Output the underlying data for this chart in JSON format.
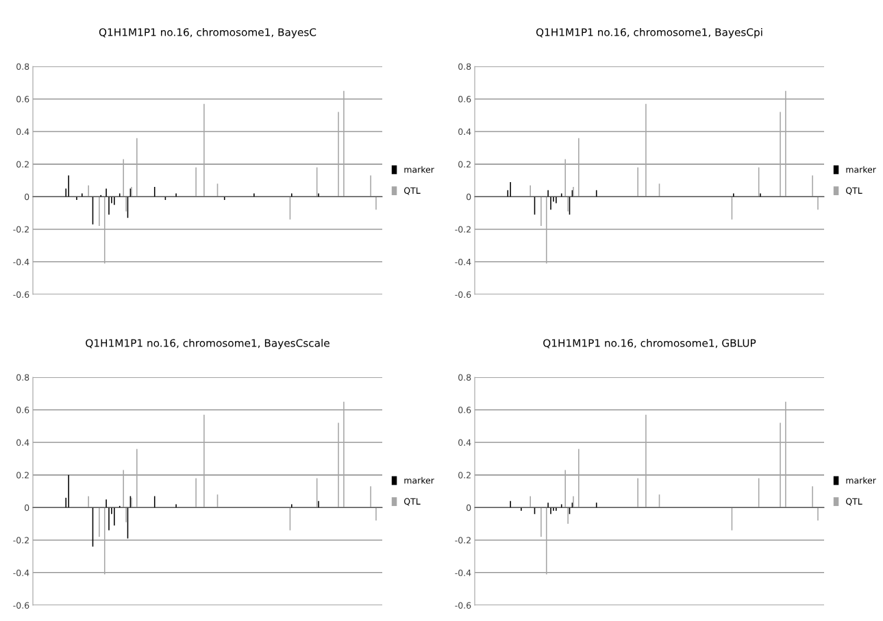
{
  "chart_data": [
    {
      "type": "bar",
      "title": "Q1H1M1P1 no.16, chromosome1, BayesC",
      "categories": [
        null,
        null,
        null,
        null,
        null,
        null,
        null,
        null,
        null,
        null,
        null,
        null,
        null,
        null,
        null,
        null,
        null,
        null,
        null,
        null,
        null,
        null,
        null,
        null,
        null,
        null,
        null,
        null,
        null,
        null,
        null,
        null,
        null,
        null,
        null,
        null,
        null,
        null,
        null,
        null,
        null,
        null,
        null,
        null,
        null,
        null,
        null,
        null,
        null,
        null,
        null,
        null,
        null,
        null,
        null,
        null,
        null,
        null,
        null,
        null,
        null,
        null,
        null,
        null,
        null,
        null,
        null,
        null,
        null,
        null,
        null,
        null,
        null,
        null,
        null,
        null,
        null,
        null,
        null,
        null,
        null,
        null,
        null,
        null,
        null,
        null,
        null,
        null,
        null,
        null,
        null,
        null,
        null,
        null,
        null,
        null,
        null,
        null,
        null,
        null,
        null,
        null,
        null,
        null,
        null,
        null,
        null,
        null,
        null,
        null,
        null,
        null,
        null,
        null,
        null,
        null,
        null,
        null,
        null,
        null,
        null,
        null,
        null,
        null,
        null,
        null,
        null,
        null,
        null,
        null
      ],
      "ylim": [
        -0.6,
        0.8
      ],
      "yticks": [
        -0.6,
        -0.4,
        -0.2,
        0,
        0.2,
        0.4,
        0.6,
        0.8
      ],
      "grid": "y",
      "legend": "right",
      "tick_labels": "y",
      "series": [
        {
          "name": "marker",
          "color": "#000000",
          "values": [
            0,
            0,
            0,
            0,
            0,
            0,
            0,
            0,
            0,
            0,
            0,
            0,
            0.05,
            0.13,
            0,
            0,
            -0.02,
            0,
            0.02,
            0,
            0,
            0,
            -0.17,
            0,
            0,
            0.01,
            0,
            0.05,
            -0.11,
            -0.04,
            -0.05,
            0,
            0.02,
            0,
            0,
            -0.13,
            0.05,
            0,
            0,
            0,
            0,
            0,
            0,
            0,
            0,
            0.06,
            0,
            0,
            0,
            -0.02,
            0,
            0,
            0,
            0.02,
            0,
            0,
            0,
            0,
            0,
            0,
            0,
            0,
            0,
            0,
            0,
            0,
            0,
            0,
            0,
            0,
            0,
            -0.02,
            0,
            0,
            0,
            0,
            0,
            0,
            0,
            0,
            0,
            0,
            0.02,
            0,
            0,
            0,
            0,
            0,
            0,
            0,
            0,
            0,
            0,
            0,
            0,
            0,
            0.02,
            0,
            0,
            0,
            0,
            0,
            0,
            0,
            0,
            0,
            0.02,
            0,
            0,
            0,
            0,
            0,
            0,
            0,
            0,
            0,
            0,
            0,
            0,
            0,
            0,
            0,
            0,
            0,
            0,
            0,
            0,
            0,
            0,
            0
          ]
        },
        {
          "name": "QTL",
          "color": "#a6a6a6",
          "values": [
            0,
            0,
            0,
            0,
            0,
            0,
            0,
            0,
            0,
            0,
            0,
            0,
            0,
            0,
            0,
            0,
            0,
            0,
            0,
            0,
            0.07,
            0,
            0,
            0,
            -0.18,
            0,
            -0.41,
            0,
            0,
            0,
            0,
            0,
            0,
            0.23,
            -0.09,
            0,
            0.06,
            0,
            0.36,
            0,
            0,
            0,
            0,
            0,
            0,
            0,
            0,
            0,
            0,
            0,
            0,
            0,
            0,
            0,
            0,
            0,
            0,
            0,
            0,
            0,
            0.18,
            0,
            0,
            0.57,
            0,
            0,
            0,
            0,
            0.08,
            0,
            0,
            0,
            0,
            0,
            0,
            0,
            0,
            0,
            0,
            0,
            0,
            0,
            0,
            0,
            0,
            0,
            0,
            0,
            0,
            0,
            0,
            0,
            0,
            0,
            0,
            -0.14,
            0,
            0,
            0,
            0,
            0,
            0,
            0,
            0,
            0,
            0.18,
            0,
            0,
            0,
            0,
            0,
            0,
            0,
            0.52,
            0,
            0.65,
            0,
            0,
            0,
            0,
            0,
            0,
            0,
            0,
            0,
            0.13,
            0,
            -0.08,
            0,
            0
          ]
        }
      ]
    },
    {
      "type": "bar",
      "title": "Q1H1M1P1 no.16, chromosome1, BayesCpi",
      "categories": [
        null,
        null,
        null,
        null,
        null,
        null,
        null,
        null,
        null,
        null,
        null,
        null,
        null,
        null,
        null,
        null,
        null,
        null,
        null,
        null,
        null,
        null,
        null,
        null,
        null,
        null,
        null,
        null,
        null,
        null,
        null,
        null,
        null,
        null,
        null,
        null,
        null,
        null,
        null,
        null,
        null,
        null,
        null,
        null,
        null,
        null,
        null,
        null,
        null,
        null,
        null,
        null,
        null,
        null,
        null,
        null,
        null,
        null,
        null,
        null,
        null,
        null,
        null,
        null,
        null,
        null,
        null,
        null,
        null,
        null,
        null,
        null,
        null,
        null,
        null,
        null,
        null,
        null,
        null,
        null,
        null,
        null,
        null,
        null,
        null,
        null,
        null,
        null,
        null,
        null,
        null,
        null,
        null,
        null,
        null,
        null,
        null,
        null,
        null,
        null,
        null,
        null,
        null,
        null,
        null,
        null,
        null,
        null,
        null,
        null,
        null,
        null,
        null,
        null,
        null,
        null,
        null,
        null,
        null,
        null,
        null,
        null,
        null,
        null,
        null,
        null,
        null,
        null,
        null,
        null
      ],
      "ylim": [
        -0.6,
        0.8
      ],
      "yticks": [
        -0.6,
        -0.4,
        -0.2,
        0,
        0.2,
        0.4,
        0.6,
        0.8
      ],
      "grid": "y",
      "legend": "right",
      "tick_labels": "y",
      "series": [
        {
          "name": "marker",
          "color": "#000000",
          "values": [
            0,
            0,
            0,
            0,
            0,
            0,
            0,
            0,
            0,
            0,
            0,
            0,
            0.04,
            0.09,
            0,
            0,
            0,
            0,
            0,
            0,
            0,
            0,
            -0.11,
            0,
            0,
            0,
            0,
            0.04,
            -0.08,
            -0.03,
            -0.04,
            0,
            0.02,
            0,
            0,
            -0.11,
            0.04,
            0,
            0,
            0,
            0,
            0,
            0,
            0,
            0,
            0.04,
            0,
            0,
            0,
            0,
            0,
            0,
            0,
            0,
            0,
            0,
            0,
            0,
            0,
            0,
            0,
            0,
            0,
            0,
            0,
            0,
            0,
            0,
            0,
            0,
            0,
            0,
            0,
            0,
            0,
            0,
            0,
            0,
            0,
            0,
            0,
            0,
            0,
            0,
            0,
            0,
            0,
            0,
            0,
            0,
            0,
            0,
            0,
            0,
            0,
            0,
            0.02,
            0,
            0,
            0,
            0,
            0,
            0,
            0,
            0,
            0,
            0.02,
            0,
            0,
            0,
            0,
            0,
            0,
            0,
            0,
            0,
            0,
            0,
            0,
            0,
            0,
            0,
            0,
            0,
            0,
            0,
            0,
            0,
            0,
            0
          ]
        },
        {
          "name": "QTL",
          "color": "#a6a6a6",
          "values": [
            0,
            0,
            0,
            0,
            0,
            0,
            0,
            0,
            0,
            0,
            0,
            0,
            0,
            0,
            0,
            0,
            0,
            0,
            0,
            0,
            0.07,
            0,
            0,
            0,
            -0.18,
            0,
            -0.41,
            0,
            0,
            0,
            0,
            0,
            0,
            0.23,
            -0.09,
            0,
            0.06,
            0,
            0.36,
            0,
            0,
            0,
            0,
            0,
            0,
            0,
            0,
            0,
            0,
            0,
            0,
            0,
            0,
            0,
            0,
            0,
            0,
            0,
            0,
            0,
            0.18,
            0,
            0,
            0.57,
            0,
            0,
            0,
            0,
            0.08,
            0,
            0,
            0,
            0,
            0,
            0,
            0,
            0,
            0,
            0,
            0,
            0,
            0,
            0,
            0,
            0,
            0,
            0,
            0,
            0,
            0,
            0,
            0,
            0,
            0,
            0,
            -0.14,
            0,
            0,
            0,
            0,
            0,
            0,
            0,
            0,
            0,
            0.18,
            0,
            0,
            0,
            0,
            0,
            0,
            0,
            0.52,
            0,
            0.65,
            0,
            0,
            0,
            0,
            0,
            0,
            0,
            0,
            0,
            0.13,
            0,
            -0.08,
            0,
            0
          ]
        }
      ]
    },
    {
      "type": "bar",
      "title": "Q1H1M1P1 no.16, chromosome1, BayesCscale",
      "categories": [
        null,
        null,
        null,
        null,
        null,
        null,
        null,
        null,
        null,
        null,
        null,
        null,
        null,
        null,
        null,
        null,
        null,
        null,
        null,
        null,
        null,
        null,
        null,
        null,
        null,
        null,
        null,
        null,
        null,
        null,
        null,
        null,
        null,
        null,
        null,
        null,
        null,
        null,
        null,
        null,
        null,
        null,
        null,
        null,
        null,
        null,
        null,
        null,
        null,
        null,
        null,
        null,
        null,
        null,
        null,
        null,
        null,
        null,
        null,
        null,
        null,
        null,
        null,
        null,
        null,
        null,
        null,
        null,
        null,
        null,
        null,
        null,
        null,
        null,
        null,
        null,
        null,
        null,
        null,
        null,
        null,
        null,
        null,
        null,
        null,
        null,
        null,
        null,
        null,
        null,
        null,
        null,
        null,
        null,
        null,
        null,
        null,
        null,
        null,
        null,
        null,
        null,
        null,
        null,
        null,
        null,
        null,
        null,
        null,
        null,
        null,
        null,
        null,
        null,
        null,
        null,
        null,
        null,
        null,
        null,
        null,
        null,
        null,
        null,
        null,
        null,
        null,
        null,
        null,
        null
      ],
      "ylim": [
        -0.6,
        0.8
      ],
      "yticks": [
        -0.6,
        -0.4,
        -0.2,
        0,
        0.2,
        0.4,
        0.6,
        0.8
      ],
      "grid": "y",
      "legend": "right",
      "tick_labels": "y",
      "series": [
        {
          "name": "marker",
          "color": "#000000",
          "values": [
            0,
            0,
            0,
            0,
            0,
            0,
            0,
            0,
            0,
            0,
            0,
            0,
            0.06,
            0.2,
            0,
            0,
            0,
            0,
            0,
            0,
            0,
            0,
            -0.24,
            0,
            0,
            0,
            0,
            0.05,
            -0.14,
            -0.04,
            -0.11,
            0,
            0.01,
            0,
            0,
            -0.19,
            0.07,
            0,
            0,
            0,
            0,
            0,
            0,
            0,
            0,
            0.07,
            0,
            0,
            0,
            0,
            0,
            0,
            0,
            0.02,
            0,
            0,
            0,
            0,
            0,
            0,
            0,
            0,
            0,
            0,
            0,
            0,
            0,
            0,
            0,
            0,
            0,
            0,
            0,
            0,
            0,
            0,
            0,
            0,
            0,
            0,
            0,
            0,
            0,
            0,
            0,
            0,
            0,
            0,
            0,
            0,
            0,
            0,
            0,
            0,
            0,
            0,
            0.02,
            0,
            0,
            0,
            0,
            0,
            0,
            0,
            0,
            0,
            0.04,
            0,
            0,
            0,
            0,
            0,
            0,
            0,
            0,
            0,
            0,
            0,
            0,
            0,
            0,
            0,
            0,
            0,
            0,
            0,
            0,
            0,
            0,
            0
          ]
        },
        {
          "name": "QTL",
          "color": "#a6a6a6",
          "values": [
            0,
            0,
            0,
            0,
            0,
            0,
            0,
            0,
            0,
            0,
            0,
            0,
            0,
            0,
            0,
            0,
            0,
            0,
            0,
            0,
            0.07,
            0,
            0,
            0,
            -0.18,
            0,
            -0.41,
            0,
            0,
            0,
            0,
            0,
            0,
            0.23,
            -0.09,
            0,
            0.06,
            0,
            0.36,
            0,
            0,
            0,
            0,
            0,
            0,
            0,
            0,
            0,
            0,
            0,
            0,
            0,
            0,
            0,
            0,
            0,
            0,
            0,
            0,
            0,
            0.18,
            0,
            0,
            0.57,
            0,
            0,
            0,
            0,
            0.08,
            0,
            0,
            0,
            0,
            0,
            0,
            0,
            0,
            0,
            0,
            0,
            0,
            0,
            0,
            0,
            0,
            0,
            0,
            0,
            0,
            0,
            0,
            0,
            0,
            0,
            0,
            -0.14,
            0,
            0,
            0,
            0,
            0,
            0,
            0,
            0,
            0,
            0.18,
            0,
            0,
            0,
            0,
            0,
            0,
            0,
            0.52,
            0,
            0.65,
            0,
            0,
            0,
            0,
            0,
            0,
            0,
            0,
            0,
            0.13,
            0,
            -0.08,
            0,
            0
          ]
        }
      ]
    },
    {
      "type": "bar",
      "title": "Q1H1M1P1 no.16, chromosome1, GBLUP",
      "categories": [
        null,
        null,
        null,
        null,
        null,
        null,
        null,
        null,
        null,
        null,
        null,
        null,
        null,
        null,
        null,
        null,
        null,
        null,
        null,
        null,
        null,
        null,
        null,
        null,
        null,
        null,
        null,
        null,
        null,
        null,
        null,
        null,
        null,
        null,
        null,
        null,
        null,
        null,
        null,
        null,
        null,
        null,
        null,
        null,
        null,
        null,
        null,
        null,
        null,
        null,
        null,
        null,
        null,
        null,
        null,
        null,
        null,
        null,
        null,
        null,
        null,
        null,
        null,
        null,
        null,
        null,
        null,
        null,
        null,
        null,
        null,
        null,
        null,
        null,
        null,
        null,
        null,
        null,
        null,
        null,
        null,
        null,
        null,
        null,
        null,
        null,
        null,
        null,
        null,
        null,
        null,
        null,
        null,
        null,
        null,
        null,
        null,
        null,
        null,
        null,
        null,
        null,
        null,
        null,
        null,
        null,
        null,
        null,
        null,
        null,
        null,
        null,
        null,
        null,
        null,
        null,
        null,
        null,
        null,
        null,
        null,
        null,
        null,
        null,
        null,
        null,
        null,
        null,
        null,
        null
      ],
      "ylim": [
        -0.6,
        0.8
      ],
      "yticks": [
        -0.6,
        -0.4,
        -0.2,
        0,
        0.2,
        0.4,
        0.6,
        0.8
      ],
      "grid": "y",
      "legend": "right",
      "tick_labels": "y",
      "series": [
        {
          "name": "marker",
          "color": "#000000",
          "values": [
            0,
            0,
            0,
            0,
            0,
            0,
            0,
            0,
            0,
            0,
            0,
            0,
            0,
            0.04,
            0,
            0,
            0,
            -0.02,
            0,
            0,
            0,
            0,
            -0.04,
            0,
            0,
            0,
            0,
            0.03,
            -0.04,
            -0.02,
            -0.02,
            0,
            0.02,
            0,
            0,
            -0.04,
            0.03,
            0,
            0,
            0,
            0,
            0,
            0,
            0,
            0,
            0.03,
            0,
            0,
            0,
            0,
            0,
            0,
            0,
            0,
            0,
            0,
            0,
            0,
            0,
            0,
            0,
            0,
            0,
            0,
            0,
            0,
            0,
            0,
            0,
            0,
            0,
            0,
            0,
            0,
            0,
            0,
            0,
            0,
            0,
            0,
            0,
            0,
            0,
            0,
            0,
            0,
            0,
            0,
            0,
            0,
            0,
            0,
            0,
            0,
            0,
            0,
            0,
            0,
            0,
            0,
            0,
            0,
            0,
            0,
            0,
            0,
            0,
            0,
            0,
            0,
            0,
            0,
            0,
            0,
            0,
            0,
            0,
            0,
            0,
            0,
            0,
            0,
            0,
            0,
            0,
            0,
            0,
            0,
            0,
            0
          ]
        },
        {
          "name": "QTL",
          "color": "#a6a6a6",
          "values": [
            0,
            0,
            0,
            0,
            0,
            0,
            0,
            0,
            0,
            0,
            0,
            0,
            0,
            0,
            0,
            0,
            0,
            0,
            0,
            0,
            0.07,
            0,
            0,
            0,
            -0.18,
            0,
            -0.41,
            0,
            0,
            0,
            0,
            0,
            0,
            0.23,
            -0.1,
            0,
            0.07,
            0,
            0.36,
            0,
            0,
            0,
            0,
            0,
            0,
            0,
            0,
            0,
            0,
            0,
            0,
            0,
            0,
            0,
            0,
            0,
            0,
            0,
            0,
            0,
            0.18,
            0,
            0,
            0.57,
            0,
            0,
            0,
            0,
            0.08,
            0,
            0,
            0,
            0,
            0,
            0,
            0,
            0,
            0,
            0,
            0,
            0,
            0,
            0,
            0,
            0,
            0,
            0,
            0,
            0,
            0,
            0,
            0,
            0,
            0,
            0,
            -0.14,
            0,
            0,
            0,
            0,
            0,
            0,
            0,
            0,
            0,
            0.18,
            0,
            0,
            0,
            0,
            0,
            0,
            0,
            0.52,
            0,
            0.65,
            0,
            0,
            0,
            0,
            0,
            0,
            0,
            0,
            0,
            0.13,
            0,
            -0.08,
            0,
            0
          ]
        }
      ]
    }
  ]
}
